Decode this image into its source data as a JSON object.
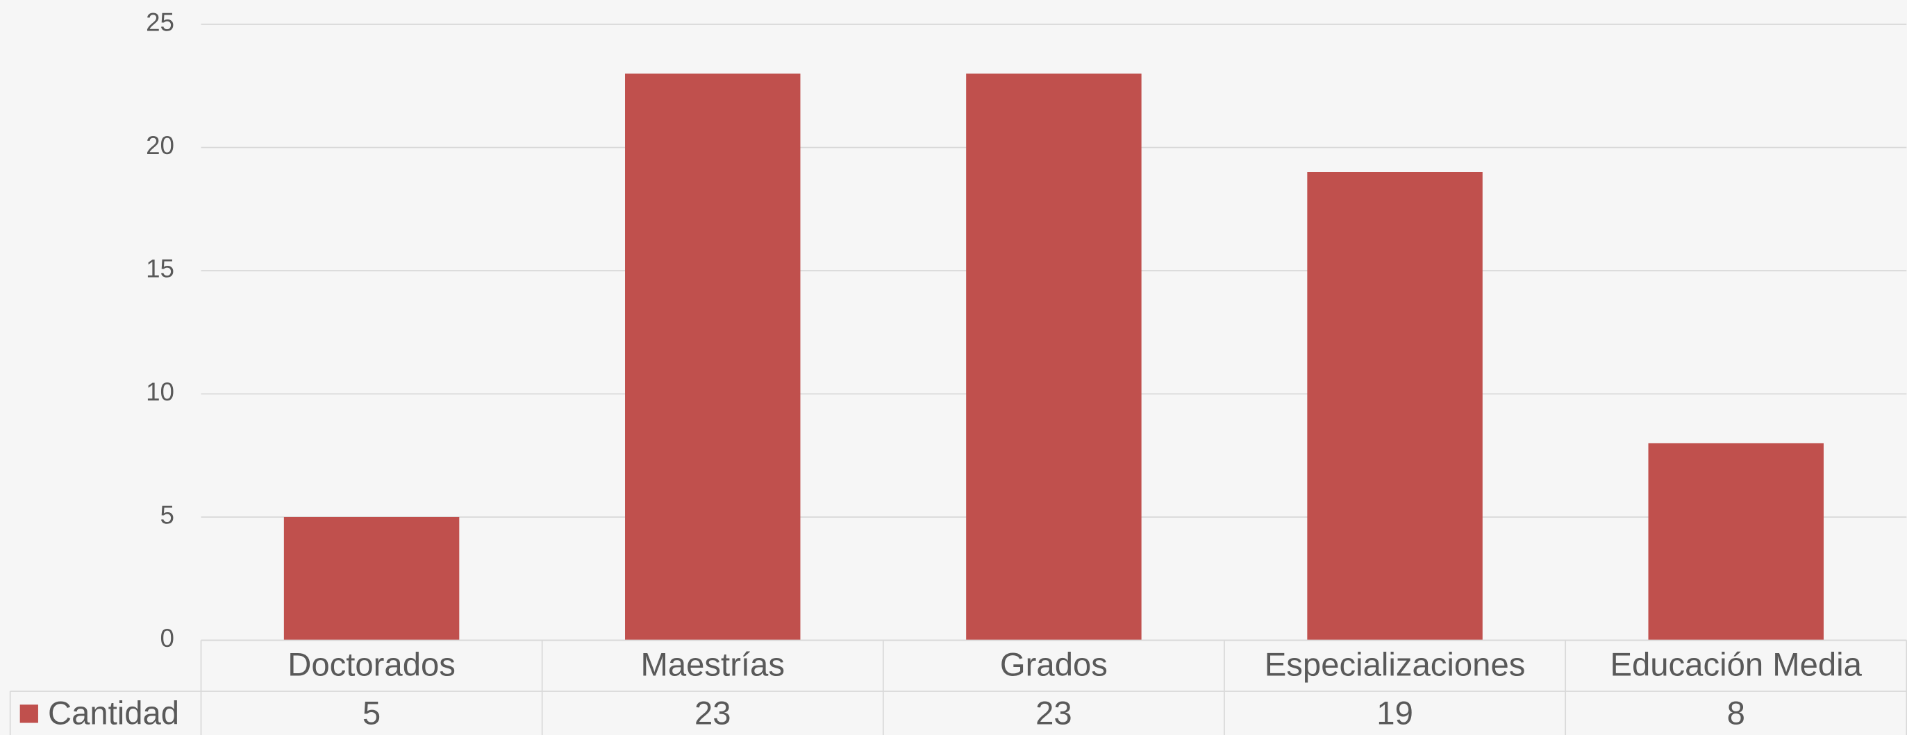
{
  "chart_data": {
    "type": "bar",
    "categories": [
      "Doctorados",
      "Maestrías",
      "Grados",
      "Especializaciones",
      "Educación Media"
    ],
    "series": [
      {
        "name": "Cantidad",
        "color": "#c0504d",
        "values": [
          5,
          23,
          23,
          19,
          8
        ]
      }
    ],
    "ylim": [
      0,
      25
    ],
    "yticks": [
      0,
      5,
      10,
      15,
      20,
      25
    ],
    "grid": true,
    "data_table": true
  }
}
